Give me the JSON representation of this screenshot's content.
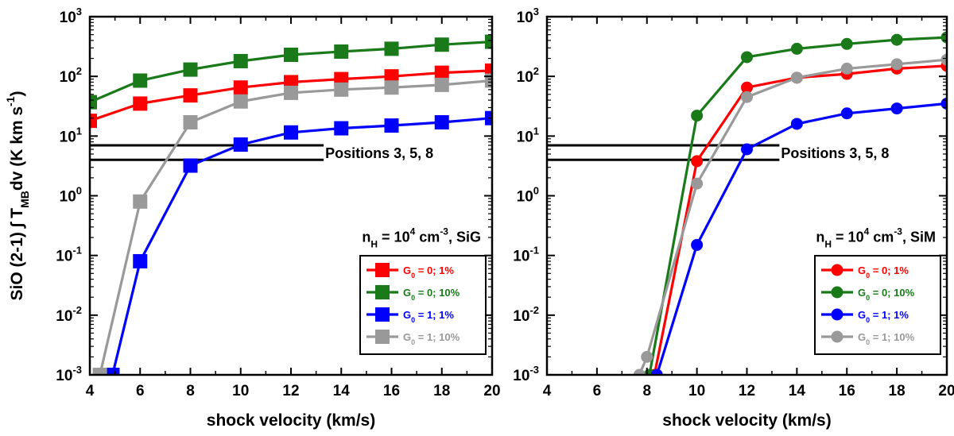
{
  "chart_data": [
    {
      "type": "line",
      "xlabel": "shock velocity (km/s)",
      "ylabel": "SiO (2-1) ∫ T_MB dv (K km s^-1)",
      "ylabel_parts": {
        "main": "SiO (2-1) ∫ T",
        "sub": "MB",
        "mid": "dv (K km s",
        "sup": "-1",
        "end": ")"
      },
      "xlim": [
        4,
        20
      ],
      "ylim": [
        0.001,
        1000
      ],
      "yscale": "log",
      "grid": false,
      "legend_position": "bottom-right",
      "marker": "square",
      "x_ticks": [
        "4",
        "6",
        "8",
        "10",
        "12",
        "14",
        "16",
        "18",
        "20"
      ],
      "y_ticks": [
        {
          "base": "10",
          "exp": "-3"
        },
        {
          "base": "10",
          "exp": "-2"
        },
        {
          "base": "10",
          "exp": "-1"
        },
        {
          "base": "10",
          "exp": "0"
        },
        {
          "base": "10",
          "exp": "1"
        },
        {
          "base": "10",
          "exp": "2"
        },
        {
          "base": "10",
          "exp": "3"
        }
      ],
      "annotation_positions": "Positions 3, 5, 8",
      "reference_band": [
        4,
        7
      ],
      "model_label": {
        "pre": "n",
        "sub": "H",
        "mid": " = 10",
        "sup": "4",
        "post": " cm",
        "sup2": "-3",
        "tail": ", SiG"
      },
      "series": [
        {
          "name": {
            "pre": "G",
            "sub": "0",
            "post": " = 0; 1%"
          },
          "color": "#ff0000",
          "x": [
            4,
            6,
            8,
            10,
            12,
            14,
            16,
            18,
            20
          ],
          "y": [
            18,
            35,
            48,
            65,
            80,
            90,
            100,
            115,
            125
          ]
        },
        {
          "name": {
            "pre": "G",
            "sub": "0",
            "post": " = 0; 10%"
          },
          "color": "#1a7a1a",
          "x": [
            4,
            6,
            8,
            10,
            12,
            14,
            16,
            18,
            20
          ],
          "y": [
            37,
            85,
            130,
            180,
            230,
            260,
            290,
            340,
            380
          ]
        },
        {
          "name": {
            "pre": "G",
            "sub": "0",
            "post": " = 1; 1%"
          },
          "color": "#0000ff",
          "x": [
            4.9,
            6,
            8,
            10,
            12,
            14,
            16,
            18,
            20
          ],
          "y": [
            0.001,
            0.08,
            3.2,
            7.2,
            11.5,
            13.5,
            15,
            17,
            20
          ]
        },
        {
          "name": {
            "pre": "G",
            "sub": "0",
            "post": " = 1; 10%"
          },
          "color": "#999999",
          "x": [
            4.4,
            6,
            8,
            10,
            12,
            14,
            16,
            18,
            20
          ],
          "y": [
            0.001,
            0.8,
            17,
            38,
            53,
            60,
            65,
            72,
            85
          ]
        }
      ]
    },
    {
      "type": "line",
      "xlabel": "shock velocity (km/s)",
      "xlim": [
        4,
        20
      ],
      "ylim": [
        0.001,
        1000
      ],
      "yscale": "log",
      "grid": false,
      "legend_position": "bottom-right",
      "marker": "circle",
      "x_ticks": [
        "4",
        "6",
        "8",
        "10",
        "12",
        "14",
        "16",
        "18",
        "20"
      ],
      "y_ticks": [
        {
          "base": "10",
          "exp": "-3"
        },
        {
          "base": "10",
          "exp": "-2"
        },
        {
          "base": "10",
          "exp": "-1"
        },
        {
          "base": "10",
          "exp": "0"
        },
        {
          "base": "10",
          "exp": "1"
        },
        {
          "base": "10",
          "exp": "2"
        },
        {
          "base": "10",
          "exp": "3"
        }
      ],
      "annotation_positions": "Positions 3, 5, 8",
      "reference_band": [
        4,
        7
      ],
      "model_label": {
        "pre": "n",
        "sub": "H",
        "mid": " = 10",
        "sup": "4",
        "post": " cm",
        "sup2": "-3",
        "tail": ", SiM"
      },
      "series": [
        {
          "name": {
            "pre": "G",
            "sub": "0",
            "post": " = 0; 1%"
          },
          "color": "#ff0000",
          "x": [
            8.3,
            10,
            12,
            14,
            16,
            18,
            20
          ],
          "y": [
            0.001,
            3.8,
            65,
            95,
            110,
            135,
            150
          ]
        },
        {
          "name": {
            "pre": "G",
            "sub": "0",
            "post": " = 0; 10%"
          },
          "color": "#1a7a1a",
          "x": [
            8.1,
            10,
            12,
            14,
            16,
            18,
            20
          ],
          "y": [
            0.001,
            22,
            210,
            290,
            350,
            410,
            450
          ]
        },
        {
          "name": {
            "pre": "G",
            "sub": "0",
            "post": " = 1; 1%"
          },
          "color": "#0000ff",
          "x": [
            8.4,
            10,
            12,
            14,
            16,
            18,
            20
          ],
          "y": [
            0.001,
            0.15,
            6,
            16,
            24,
            29,
            35
          ]
        },
        {
          "name": {
            "pre": "G",
            "sub": "0",
            "post": " = 1; 10%"
          },
          "color": "#999999",
          "x": [
            7.7,
            8,
            10,
            12,
            14,
            16,
            18,
            20
          ],
          "y": [
            0.001,
            0.002,
            1.6,
            45,
            95,
            135,
            160,
            190
          ]
        }
      ]
    }
  ]
}
